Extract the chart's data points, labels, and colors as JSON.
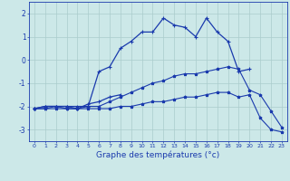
{
  "xlabel": "Graphe des températures (°c)",
  "background_color": "#cce8e8",
  "grid_color": "#aacccc",
  "line_color": "#1a3aad",
  "x_hours": [
    0,
    1,
    2,
    3,
    4,
    5,
    6,
    7,
    8,
    9,
    10,
    11,
    12,
    13,
    14,
    15,
    16,
    17,
    18,
    19,
    20,
    21,
    22,
    23
  ],
  "line1": [
    -2.1,
    -2.0,
    -2.0,
    -2.1,
    -2.1,
    -2.0,
    -0.5,
    -0.3,
    0.5,
    0.8,
    1.2,
    1.2,
    1.8,
    1.5,
    1.4,
    1.0,
    1.8,
    1.2,
    0.8,
    -0.5,
    -0.4,
    null,
    null,
    null
  ],
  "line2": [
    -2.1,
    -2.0,
    -2.0,
    -2.0,
    -2.1,
    -1.9,
    -1.8,
    -1.6,
    -1.5,
    null,
    null,
    null,
    null,
    null,
    null,
    null,
    null,
    null,
    null,
    null,
    null,
    null,
    null,
    null
  ],
  "line3": [
    -2.1,
    -2.1,
    -2.0,
    -2.0,
    -2.0,
    -2.0,
    -2.0,
    -1.8,
    -1.6,
    -1.4,
    -1.2,
    -1.0,
    -0.9,
    -0.7,
    -0.6,
    -0.6,
    -0.5,
    -0.4,
    -0.3,
    -0.4,
    -1.3,
    -1.5,
    -2.2,
    -2.9
  ],
  "line4": [
    -2.1,
    -2.1,
    -2.1,
    -2.1,
    -2.1,
    -2.1,
    -2.1,
    -2.1,
    -2.0,
    -2.0,
    -1.9,
    -1.8,
    -1.8,
    -1.7,
    -1.6,
    -1.6,
    -1.5,
    -1.4,
    -1.4,
    -1.6,
    -1.5,
    -2.5,
    -3.0,
    -3.1
  ],
  "ylim": [
    -3.5,
    2.5
  ],
  "yticks": [
    -3,
    -2,
    -1,
    0,
    1,
    2
  ],
  "xlim": [
    -0.5,
    23.5
  ]
}
